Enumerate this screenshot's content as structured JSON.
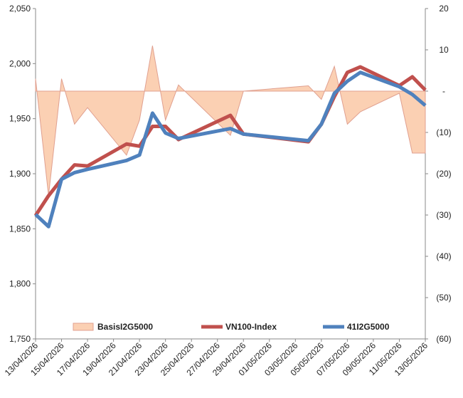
{
  "chart_data": {
    "type": "line",
    "x": [
      "13/04/2026",
      "14/04/2026",
      "15/04/2026",
      "16/04/2026",
      "17/04/2026",
      "20/04/2026",
      "21/04/2026",
      "22/04/2026",
      "23/04/2026",
      "24/04/2026",
      "28/04/2026",
      "29/04/2026",
      "04/05/2026",
      "05/05/2026",
      "06/05/2026",
      "07/05/2026",
      "08/05/2026",
      "11/05/2026",
      "12/05/2026",
      "13/05/2026"
    ],
    "series": [
      {
        "name": "BasisI2G5000",
        "kind": "area",
        "axis": "y2",
        "color": "#fbd0b3",
        "edge": "#e0a090",
        "values": [
          3,
          -25.3,
          3,
          -8,
          -4,
          -15.5,
          -7,
          11,
          -7,
          1.5,
          -10.7,
          0,
          1.3,
          -2,
          6,
          -8,
          -5,
          -0.5,
          -15,
          -15
        ]
      },
      {
        "name": "VN100-Index",
        "kind": "line",
        "color": "#c0504d",
        "values": [
          1862,
          1880,
          1895,
          1908,
          1907,
          1927,
          1925,
          1943,
          1943,
          1931,
          1953,
          1936,
          1929,
          1945,
          1970,
          1992,
          1997,
          1980,
          1988,
          1976
        ]
      },
      {
        "name": "41I2G5000",
        "kind": "line",
        "color": "#4f81bd",
        "values": [
          1863,
          1852,
          1895,
          1901,
          1904,
          1912,
          1917,
          1955,
          1937,
          1932,
          1941,
          1936,
          1930,
          1945,
          1973,
          1984,
          1992,
          1979,
          1972,
          1962
        ]
      }
    ],
    "xlim": [
      "13/04/2026",
      "13/05/2026"
    ],
    "xticks": [
      "13/04/2026",
      "15/04/2026",
      "17/04/2026",
      "19/04/2026",
      "21/04/2026",
      "23/04/2026",
      "25/04/2026",
      "27/04/2026",
      "29/04/2026",
      "01/05/2026",
      "03/05/2026",
      "05/05/2026",
      "07/05/2026",
      "09/05/2026",
      "11/05/2026",
      "13/05/2026"
    ],
    "ylim": [
      1750,
      2050
    ],
    "yticks": [
      {
        "value": 1750,
        "label": "1,750"
      },
      {
        "value": 1800,
        "label": "1,800"
      },
      {
        "value": 1850,
        "label": "1,850"
      },
      {
        "value": 1900,
        "label": "1,900"
      },
      {
        "value": 1950,
        "label": "1,950"
      },
      {
        "value": 2000,
        "label": "2,000"
      },
      {
        "value": 2050,
        "label": "2,050"
      }
    ],
    "y2lim": [
      -60,
      20
    ],
    "y2ticks": [
      {
        "value": -60,
        "label": "(60)"
      },
      {
        "value": -50,
        "label": "(50)"
      },
      {
        "value": -40,
        "label": "(40)"
      },
      {
        "value": -30,
        "label": "(30)"
      },
      {
        "value": -20,
        "label": "(20)"
      },
      {
        "value": -10,
        "label": "(10)"
      },
      {
        "value": 0,
        "label": "-"
      },
      10,
      20
    ],
    "legend": "bottom"
  }
}
